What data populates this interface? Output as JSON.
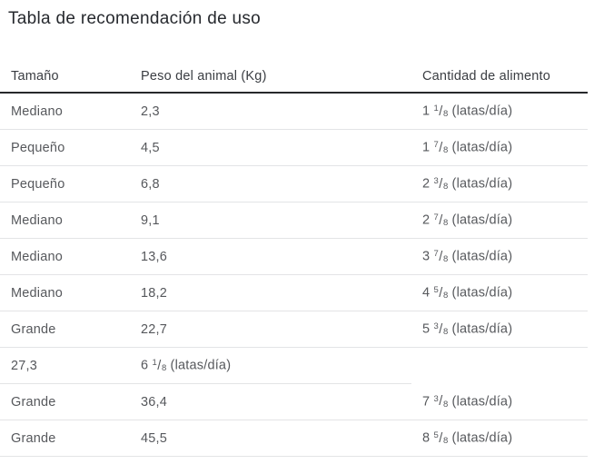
{
  "title": "Tabla de recomendación de uso",
  "table": {
    "headers": [
      "Tamaño",
      "Peso del animal (Kg)",
      "Cantidad de alimento"
    ],
    "rows": [
      [
        "Mediano",
        "2,3",
        "1 1/8 (latas/día)"
      ],
      [
        "Pequeño",
        "4,5",
        "1 7/8 (latas/día)"
      ],
      [
        "Pequeño",
        "6,8",
        "2 3/8 (latas/día)"
      ],
      [
        "Mediano",
        "9,1",
        "2 7/8 (latas/día)"
      ],
      [
        "Mediano",
        "13,6",
        "3 7/8 (latas/día)"
      ],
      [
        "Mediano",
        "18,2",
        "4 5/8 (latas/día)"
      ],
      [
        "Grande",
        "22,7",
        "5 3/8 (latas/día)"
      ],
      [
        "27,3",
        "6 1/8 (latas/día)",
        ""
      ],
      [
        "Grande",
        "36,4",
        "7 3/8 (latas/día)"
      ],
      [
        "Grande",
        "45,5",
        "8 5/8 (latas/día)"
      ]
    ]
  },
  "colors": {
    "background": "#ffffff",
    "title_text": "#26292e",
    "header_text": "#3a3d42",
    "body_text": "#56585c",
    "header_rule": "#26282b",
    "row_divider": "#e3e4e6"
  },
  "chart_data": {
    "type": "table",
    "title": "Tabla de recomendación de uso",
    "columns": [
      "Tamaño",
      "Peso del animal (Kg)",
      "Cantidad de alimento"
    ],
    "rows": [
      [
        "Mediano",
        "2,3",
        "1 1/8 (latas/día)"
      ],
      [
        "Pequeño",
        "4,5",
        "1 7/8 (latas/día)"
      ],
      [
        "Pequeño",
        "6,8",
        "2 3/8 (latas/día)"
      ],
      [
        "Mediano",
        "9,1",
        "2 7/8 (latas/día)"
      ],
      [
        "Mediano",
        "13,6",
        "3 7/8 (latas/día)"
      ],
      [
        "Mediano",
        "18,2",
        "4 5/8 (latas/día)"
      ],
      [
        "Grande",
        "22,7",
        "5 3/8 (latas/día)"
      ],
      [
        "27,3",
        "6 1/8 (latas/día)",
        ""
      ],
      [
        "Grande",
        "36,4",
        "7 3/8 (latas/día)"
      ],
      [
        "Grande",
        "45,5",
        "8 5/8 (latas/día)"
      ]
    ]
  }
}
